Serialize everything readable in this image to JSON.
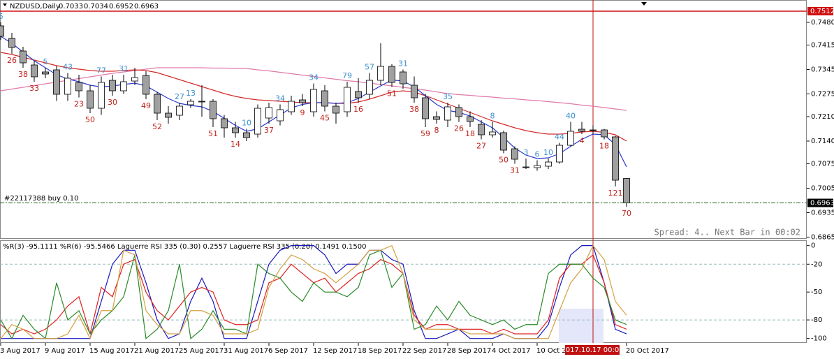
{
  "chart_data": [
    {
      "type": "candlestick",
      "title": "NZDUSD,Daily",
      "categories": [
        "3 Aug 2017",
        null,
        null,
        null,
        "9 Aug 2017",
        null,
        null,
        null,
        "15 Aug 2017",
        null,
        null,
        null,
        "21 Aug 2017",
        null,
        null,
        null,
        "25 Aug 2017",
        null,
        null,
        null,
        "31 Aug 2017",
        null,
        null,
        null,
        "6 Sep 2017",
        null,
        null,
        null,
        "12 Sep 2017",
        null,
        null,
        null,
        "18 Sep 2017",
        null,
        null,
        null,
        "22 Sep 2017",
        null,
        null,
        null,
        "28 Sep 2017",
        null,
        null,
        null,
        "4 Oct 2017",
        null,
        null,
        null,
        "10 Oct 2017",
        null,
        null,
        null,
        null,
        null,
        null,
        null,
        "20 Oct 2017"
      ],
      "candles": [
        [
          0.747,
          0.748,
          0.743,
          0.744
        ],
        [
          0.7434,
          0.745,
          0.739,
          0.7408
        ],
        [
          0.7398,
          0.741,
          0.735,
          0.7364
        ],
        [
          0.7358,
          0.737,
          0.731,
          0.7324
        ],
        [
          0.7338,
          0.735,
          0.732,
          0.7332
        ],
        [
          0.7344,
          0.7356,
          0.7255,
          0.7274
        ],
        [
          0.7274,
          0.7335,
          0.7255,
          0.732
        ],
        [
          0.7308,
          0.733,
          0.7265,
          0.7284
        ],
        [
          0.7284,
          0.73,
          0.722,
          0.7234
        ],
        [
          0.7234,
          0.7325,
          0.7215,
          0.7308
        ],
        [
          0.7314,
          0.733,
          0.727,
          0.7284
        ],
        [
          0.7284,
          0.733,
          0.7275,
          0.731
        ],
        [
          0.7312,
          0.735,
          0.73,
          0.7322
        ],
        [
          0.7328,
          0.734,
          0.726,
          0.7274
        ],
        [
          0.7274,
          0.728,
          0.72,
          0.722
        ],
        [
          0.722,
          0.724,
          0.719,
          0.7208
        ],
        [
          0.7214,
          0.725,
          0.72,
          0.724
        ],
        [
          0.7244,
          0.726,
          0.7235,
          0.7254
        ],
        [
          0.7254,
          0.73,
          0.721,
          0.7252
        ],
        [
          0.7254,
          0.726,
          0.718,
          0.7204
        ],
        [
          0.7204,
          0.7215,
          0.715,
          0.7178
        ],
        [
          0.7178,
          0.7195,
          0.715,
          0.7164
        ],
        [
          0.7164,
          0.7175,
          0.714,
          0.715
        ],
        [
          0.716,
          0.7245,
          0.715,
          0.7234
        ],
        [
          0.7206,
          0.725,
          0.719,
          0.7236
        ],
        [
          0.7198,
          0.7245,
          0.7185,
          0.723
        ],
        [
          0.7224,
          0.727,
          0.7215,
          0.7254
        ],
        [
          0.7258,
          0.7275,
          0.724,
          0.725
        ],
        [
          0.7224,
          0.7305,
          0.721,
          0.7288
        ],
        [
          0.7284,
          0.73,
          0.7225,
          0.724
        ],
        [
          0.724,
          0.725,
          0.719,
          0.722
        ],
        [
          0.7224,
          0.731,
          0.721,
          0.7294
        ],
        [
          0.7282,
          0.732,
          0.725,
          0.7264
        ],
        [
          0.7274,
          0.7335,
          0.726,
          0.7314
        ],
        [
          0.7314,
          0.742,
          0.73,
          0.7354
        ],
        [
          0.7354,
          0.736,
          0.7295,
          0.7308
        ],
        [
          0.7338,
          0.7345,
          0.729,
          0.7304
        ],
        [
          0.73,
          0.7325,
          0.725,
          0.7264
        ],
        [
          0.7264,
          0.7275,
          0.718,
          0.7204
        ],
        [
          0.721,
          0.7225,
          0.719,
          0.7202
        ],
        [
          0.72,
          0.725,
          0.718,
          0.7238
        ],
        [
          0.7236,
          0.7245,
          0.7195,
          0.721
        ],
        [
          0.721,
          0.7225,
          0.718,
          0.7196
        ],
        [
          0.7188,
          0.72,
          0.7145,
          0.7158
        ],
        [
          0.7158,
          0.7195,
          0.715,
          0.7166
        ],
        [
          0.7164,
          0.717,
          0.7105,
          0.7114
        ],
        [
          0.7118,
          0.7125,
          0.7075,
          0.7088
        ],
        [
          0.7066,
          0.709,
          0.706,
          0.7064
        ],
        [
          0.7064,
          0.7085,
          0.7055,
          0.707
        ],
        [
          0.7068,
          0.709,
          0.706,
          0.708
        ],
        [
          0.708,
          0.7135,
          0.7075,
          0.7128
        ],
        [
          0.7128,
          0.7195,
          0.7125,
          0.7168
        ],
        [
          0.7174,
          0.7195,
          0.716,
          0.7168
        ],
        [
          0.7172,
          0.7185,
          0.716,
          0.717
        ],
        [
          0.7172,
          0.7175,
          0.7145,
          0.7152
        ],
        [
          0.7152,
          0.7155,
          0.701,
          0.7028
        ],
        [
          0.7033,
          0.7034,
          0.6952,
          0.6963
        ]
      ],
      "up_color": "#ffffff",
      "down_color": "#a0a0a0",
      "series": [
        {
          "color": "#e07aa8",
          "values": [
            0.7284,
            0.7289,
            0.7294,
            0.7299,
            0.7304,
            0.7309,
            0.7314,
            0.7319,
            0.7324,
            0.7329,
            0.7334,
            0.7338,
            0.7342,
            0.7346,
            0.735,
            0.735,
            0.735,
            0.735,
            0.735,
            0.7349,
            0.7349,
            0.7348,
            0.7348,
            0.7344,
            0.7341,
            0.7337,
            0.7333,
            0.7329,
            0.7325,
            0.7321,
            0.7317,
            0.7313,
            0.731,
            0.7306,
            0.7302,
            0.7298,
            0.7294,
            0.729,
            0.7286,
            0.7281,
            0.7276,
            0.7273,
            0.7271,
            0.7268,
            0.7266,
            0.7263,
            0.7261,
            0.7258,
            0.7256,
            0.7253,
            0.725,
            0.7247,
            0.7243,
            0.724,
            0.7236,
            0.7232,
            0.7228
          ]
        },
        {
          "color": "#d42a2a",
          "values": [
            0.7394,
            0.7388,
            0.738,
            0.7372,
            0.7364,
            0.7356,
            0.735,
            0.7346,
            0.7342,
            0.734,
            0.734,
            0.7342,
            0.7344,
            0.7342,
            0.7336,
            0.7326,
            0.7316,
            0.7306,
            0.7296,
            0.7286,
            0.7276,
            0.7268,
            0.7262,
            0.7258,
            0.7256,
            0.7254,
            0.7252,
            0.725,
            0.725,
            0.725,
            0.7248,
            0.7248,
            0.7252,
            0.726,
            0.727,
            0.728,
            0.7284,
            0.728,
            0.727,
            0.7258,
            0.7246,
            0.7234,
            0.7222,
            0.721,
            0.7198,
            0.7188,
            0.7178,
            0.717,
            0.7164,
            0.716,
            0.716,
            0.7162,
            0.7166,
            0.7168,
            0.7165,
            0.7158,
            0.714
          ]
        },
        {
          "color": "#2a3acc",
          "values": [
            0.744,
            0.742,
            0.7395,
            0.737,
            0.735,
            0.733,
            0.7318,
            0.731,
            0.73,
            0.7295,
            0.7298,
            0.7302,
            0.7306,
            0.7298,
            0.728,
            0.7262,
            0.7248,
            0.7242,
            0.7238,
            0.7225,
            0.7205,
            0.7185,
            0.7168,
            0.7175,
            0.7195,
            0.7215,
            0.7235,
            0.7245,
            0.725,
            0.725,
            0.7248,
            0.725,
            0.7262,
            0.728,
            0.7298,
            0.7315,
            0.7312,
            0.7295,
            0.727,
            0.7245,
            0.7228,
            0.7222,
            0.7212,
            0.7195,
            0.7178,
            0.715,
            0.712,
            0.71,
            0.709,
            0.7092,
            0.7104,
            0.7125,
            0.7145,
            0.716,
            0.7158,
            0.713,
            0.7066
          ]
        }
      ],
      "upper_labels": [
        6,
        null,
        null,
        null,
        5,
        null,
        43,
        null,
        null,
        77,
        null,
        31,
        null,
        null,
        null,
        null,
        27,
        13,
        null,
        null,
        null,
        null,
        10,
        null,
        null,
        34,
        null,
        null,
        34,
        null,
        null,
        79,
        null,
        57,
        null,
        null,
        31,
        null,
        null,
        null,
        35,
        null,
        null,
        null,
        8,
        null,
        null,
        3,
        6,
        10,
        44,
        40,
        null,
        null,
        null,
        null,
        null
      ],
      "upper_color": "#3a8fd0",
      "lower_labels": [
        null,
        26,
        38,
        33,
        null,
        null,
        null,
        23,
        50,
        null,
        30,
        null,
        null,
        49,
        52,
        null,
        null,
        null,
        null,
        51,
        null,
        14,
        null,
        null,
        37,
        null,
        null,
        9,
        null,
        45,
        null,
        null,
        16,
        null,
        null,
        51,
        null,
        38,
        59,
        8,
        null,
        26,
        18,
        27,
        null,
        50,
        31,
        null,
        null,
        null,
        null,
        null,
        4,
        null,
        18,
        121,
        70
      ],
      "lower_color": "#c0201a",
      "ylim": [
        0.686,
        0.7524
      ],
      "yticks": [
        {
          "value": 0.748,
          "label": "0.7480"
        },
        {
          "value": 0.7415,
          "label": "0.7415"
        },
        {
          "value": 0.7345,
          "label": "0.7345"
        },
        {
          "value": 0.7275,
          "label": "0.7275"
        },
        {
          "value": 0.721,
          "label": "0.7210"
        },
        {
          "value": 0.714,
          "label": "0.7140"
        },
        {
          "value": 0.7075,
          "label": "0.7075"
        },
        {
          "value": 0.7005,
          "label": "0.7005"
        },
        {
          "value": 0.6935,
          "label": "0.6935"
        },
        {
          "value": 0.6865,
          "label": "0.6865"
        }
      ],
      "level": {
        "value": 0.7512,
        "label": "0.7512",
        "color": "#d01010"
      },
      "order_label": "#22117388 buy 0.10",
      "status": "Spread: 4.. Next Bar in 00:02",
      "crosshair_label": "2017.10.17 00:00"
    },
    {
      "type": "line",
      "title": "%R(3) -95.1111 %R(6) -95.5466 Laguerre RSI 335 (0.30) 0.2557 Laguerre RSI 335 (0.20) 0.1491 0.1500",
      "series": [
        {
          "color": "#1818c0",
          "values": [
            -100,
            -100,
            -100,
            -100,
            -100,
            -100,
            -100,
            -100,
            -100,
            -60,
            -20,
            -5,
            -5,
            -40,
            -80,
            -100,
            -95,
            -60,
            -35,
            -60,
            -100,
            -100,
            -100,
            -60,
            -20,
            -5,
            0,
            0,
            0,
            -10,
            -30,
            -20,
            -20,
            -5,
            -5,
            -15,
            -20,
            -70,
            -100,
            -100,
            -95,
            -90,
            -100,
            -100,
            -100,
            -95,
            -100,
            -100,
            -100,
            -85,
            -45,
            -10,
            0,
            0,
            -40,
            -90,
            -95
          ]
        },
        {
          "color": "#e02020",
          "values": [
            -85,
            -95,
            -90,
            -95,
            -90,
            -80,
            -65,
            -55,
            -95,
            -45,
            -55,
            -20,
            -15,
            -50,
            -70,
            -80,
            -65,
            -50,
            -45,
            -50,
            -80,
            -85,
            -85,
            -80,
            -40,
            -35,
            -20,
            -30,
            -40,
            -35,
            -50,
            -40,
            -30,
            -25,
            -15,
            -20,
            -30,
            -75,
            -90,
            -85,
            -85,
            -90,
            -90,
            -90,
            -95,
            -90,
            -95,
            -95,
            -95,
            -80,
            -35,
            -20,
            -20,
            -10,
            -40,
            -85,
            -90
          ]
        },
        {
          "color": "#2a8a2a",
          "values": [
            -80,
            -100,
            -75,
            -90,
            -100,
            -40,
            -80,
            -70,
            -95,
            -80,
            -70,
            -55,
            -10,
            -100,
            -90,
            -70,
            -20,
            -100,
            -90,
            -70,
            -90,
            -90,
            -95,
            -20,
            -30,
            -35,
            -50,
            -60,
            -40,
            -50,
            -50,
            -55,
            -45,
            -10,
            -5,
            -45,
            -30,
            -90,
            -85,
            -65,
            -80,
            -60,
            -75,
            -80,
            -85,
            -80,
            -90,
            -85,
            -85,
            -30,
            -20,
            -20,
            -20,
            -35,
            -45,
            -80,
            -85
          ]
        },
        {
          "color": "#d4a040",
          "values": [
            -100,
            -85,
            -90,
            -100,
            -100,
            -100,
            -95,
            -75,
            -100,
            -70,
            -70,
            -5,
            -10,
            -70,
            -85,
            -95,
            -95,
            -70,
            -70,
            -75,
            -95,
            -95,
            -95,
            -90,
            -45,
            -25,
            -10,
            -15,
            -25,
            -30,
            -40,
            -30,
            -20,
            -5,
            -5,
            0,
            -30,
            -80,
            -90,
            -90,
            -90,
            -90,
            -95,
            -95,
            -95,
            -95,
            -100,
            -100,
            -100,
            -100,
            -70,
            -40,
            -25,
            0,
            -15,
            -60,
            -75
          ]
        }
      ],
      "ylim": [
        -104,
        5
      ],
      "yticks": [
        0,
        -20,
        -50,
        -80,
        -100
      ],
      "levels": [
        -20,
        -80
      ]
    }
  ]
}
